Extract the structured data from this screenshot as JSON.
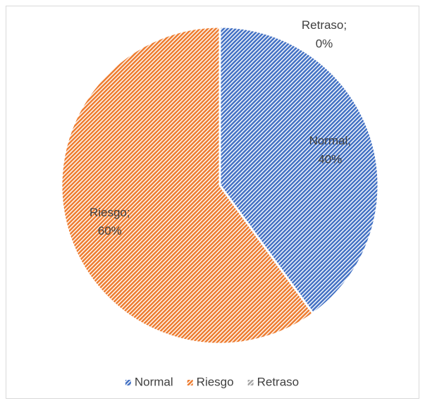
{
  "chart_data": {
    "type": "pie",
    "categories": [
      "Normal",
      "Riesgo",
      "Retraso"
    ],
    "values": [
      40,
      60,
      0
    ],
    "value_labels": [
      "40%",
      "60%",
      "0%"
    ],
    "label_separator": ";",
    "colors": [
      "#4472c4",
      "#ed7d31",
      "#a5a5a5"
    ],
    "pattern": "diagonal-hatch",
    "legend": "bottom"
  }
}
